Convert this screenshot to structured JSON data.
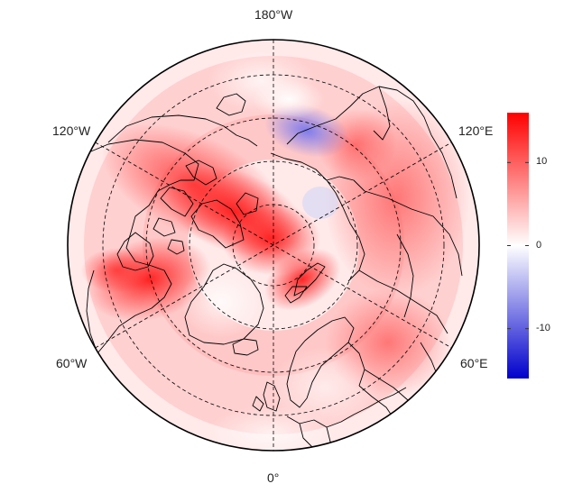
{
  "map": {
    "projection": "north-polar-stereographic",
    "longitude_labels": {
      "top": "180°W",
      "upper_left": "120°W",
      "upper_right": "120°E",
      "lower_left": "60°W",
      "lower_right": "60°E",
      "bottom": "0°"
    },
    "colorbar": {
      "range": [
        -16,
        16
      ],
      "ticks": [
        10,
        0,
        -10
      ],
      "tick_labels": [
        "10",
        "0",
        "-10"
      ],
      "colors": {
        "high": "#ff0000",
        "mid": "#ffffff",
        "low": "#0000cc"
      }
    },
    "coastline_color": "#000000",
    "graticule_style": "dashed"
  }
}
